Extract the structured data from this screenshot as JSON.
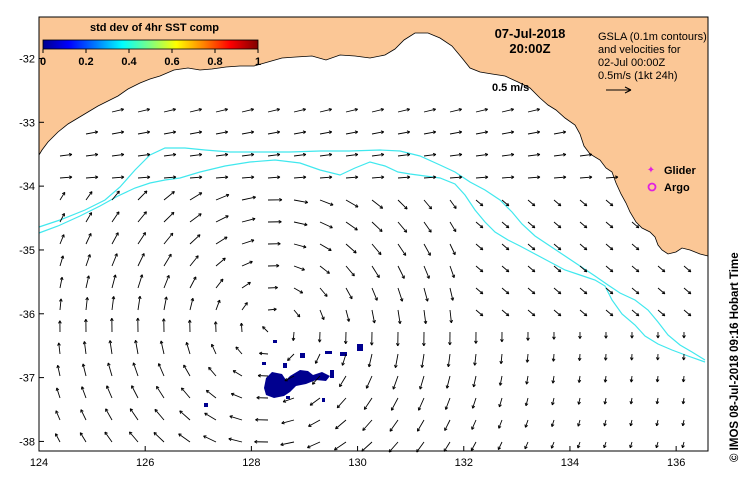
{
  "map": {
    "title_date": "07-Jul-2018",
    "title_time": "20:00Z",
    "vector_scale_label": "0.5 m/s",
    "x_ticks": [
      "124",
      "126",
      "128",
      "130",
      "132",
      "134",
      "136"
    ],
    "y_ticks": [
      "-32",
      "-33",
      "-34",
      "-35",
      "-36",
      "-37",
      "-38"
    ],
    "lon_range": [
      124,
      136.6
    ],
    "lat_range": [
      -38.15,
      -31.35
    ]
  },
  "colorbar": {
    "title": "std dev of 4hr SST comp",
    "ticks": [
      "0",
      "0.2",
      "0.4",
      "0.6",
      "0.8",
      "1"
    ],
    "colors": [
      "#00008f",
      "#0000ff",
      "#0080ff",
      "#00ffff",
      "#80ff80",
      "#ffff00",
      "#ff8000",
      "#ff0000",
      "#800000"
    ]
  },
  "legend": {
    "line1": "GSLA (0.1m contours)",
    "line2": "and velocities for",
    "line3": "02-Jul 00:00Z",
    "line4": "0.5m/s (1kt 24h)",
    "glider_label": "Glider",
    "argo_label": "Argo",
    "glider_color": "#e020e0",
    "argo_color": "#e020e0"
  },
  "credit": "© IMOS 08-Jul-2018 09:16 Hobart Time",
  "colors": {
    "land": "#fbc796",
    "contour": "#40e8ee",
    "sst_patch": "#00008f",
    "arrow": "#000000"
  }
}
